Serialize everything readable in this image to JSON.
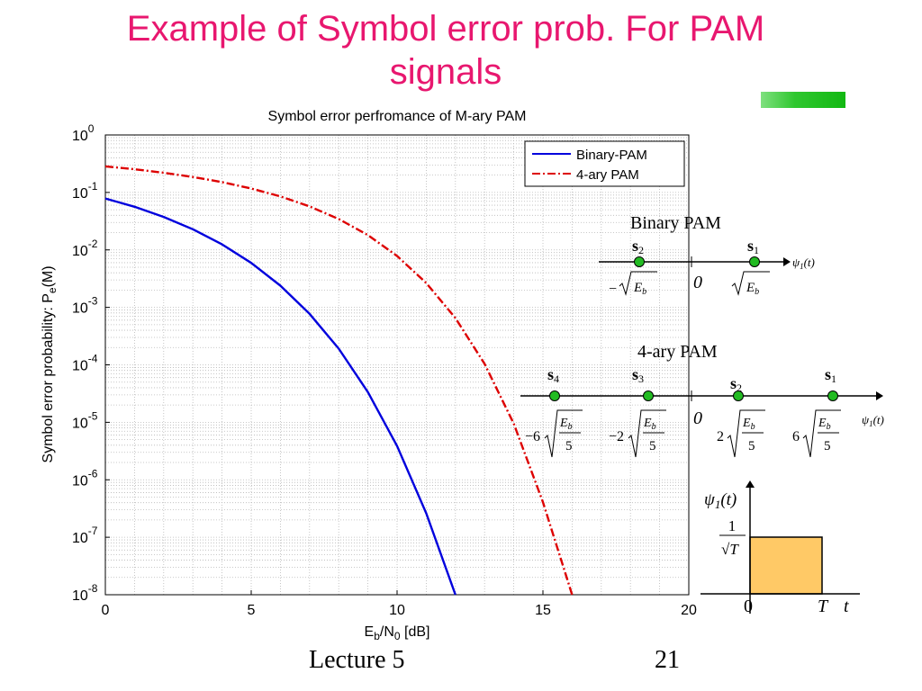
{
  "slide": {
    "title_line1": "Example of Symbol error prob. For PAM",
    "title_line2": "signals",
    "footer_left": "Lecture 5",
    "footer_right": "21",
    "accent_color": "#22c422",
    "title_color": "#e8176f"
  },
  "chart_data": {
    "type": "line",
    "title": "Symbol error perfromance of M-ary PAM",
    "xlabel": "E_b/N_0 [dB]",
    "ylabel": "Symbol error probability: P_e(M)",
    "xlim": [
      0,
      20
    ],
    "ylim": [
      1e-08,
      1
    ],
    "yscale": "log",
    "grid": true,
    "legend_position": "top-right",
    "x_ticks": [
      0,
      5,
      10,
      15,
      20
    ],
    "y_tick_exponents": [
      0,
      -1,
      -2,
      -3,
      -4,
      -5,
      -6,
      -7,
      -8
    ],
    "y_tick_base": "10",
    "series": [
      {
        "name": "Binary-PAM",
        "color": "#0000dd",
        "style": "solid",
        "x": [
          0,
          1,
          2,
          3,
          4,
          5,
          6,
          7,
          8,
          9,
          10,
          11,
          12
        ],
        "y": [
          0.0786,
          0.0563,
          0.0375,
          0.0229,
          0.0125,
          0.00595,
          0.00239,
          0.000773,
          0.000191,
          3.36e-05,
          3.87e-06,
          2.61e-07,
          9.01e-09
        ]
      },
      {
        "name": "4-ary PAM",
        "color": "#dd0000",
        "style": "dashdot",
        "x": [
          0,
          1,
          2,
          3,
          4,
          5,
          6,
          7,
          8,
          9,
          10,
          11,
          12,
          13,
          14,
          15,
          16
        ],
        "y": [
          0.284,
          0.253,
          0.22,
          0.186,
          0.151,
          0.117,
          0.0852,
          0.0572,
          0.0345,
          0.0181,
          0.00785,
          0.00265,
          0.000652,
          0.000104,
          9.47e-06,
          4.08e-07,
          6.53e-09
        ]
      }
    ]
  },
  "diagram": {
    "binary_title": "Binary PAM",
    "quad_title": "4-ary PAM",
    "axis_label": "ψ1(t)",
    "origin_label": "0",
    "binary_points": [
      "s2",
      "s1"
    ],
    "binary_values": [
      "−√Eb",
      "√Eb"
    ],
    "quad_points": [
      "s4",
      "s3",
      "s2",
      "s1"
    ],
    "quad_coeffs": [
      "−6",
      "−2",
      "2",
      "6"
    ],
    "quad_radicand_num": "Eb",
    "quad_radicand_den": "5",
    "point_color": "#22bb22"
  },
  "basis": {
    "ylabel": "ψ1(t)",
    "amplitude_num": "1",
    "amplitude_den": "√T",
    "origin": "0",
    "end": "T",
    "xlabel": "t",
    "fill_color": "#ffc966"
  }
}
